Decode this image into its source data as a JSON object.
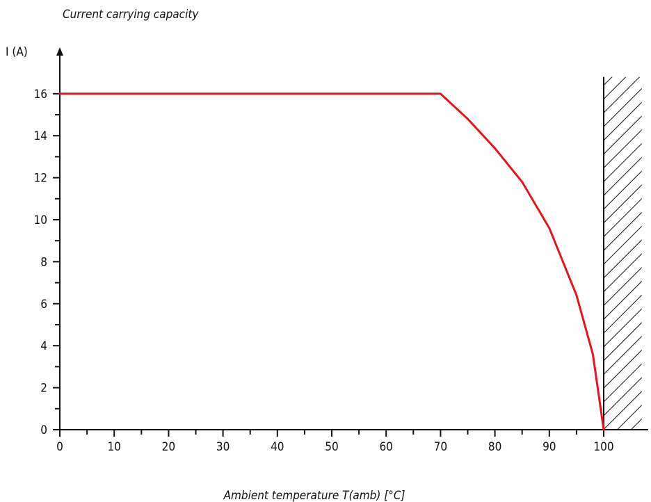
{
  "chart_data": {
    "type": "line",
    "title": "Current carrying capacity",
    "xlabel": "Ambient temperature T(amb) [°C]",
    "ylabel": "I (A)",
    "xlim": [
      0,
      107
    ],
    "ylim": [
      0,
      17
    ],
    "x_ticks": [
      0,
      10,
      20,
      30,
      40,
      50,
      60,
      70,
      80,
      90,
      100
    ],
    "y_ticks": [
      0,
      2,
      4,
      6,
      8,
      10,
      12,
      14,
      16
    ],
    "grid": false,
    "series": [
      {
        "color": "#e8141c",
        "x": [
          0,
          70,
          75,
          80,
          85,
          90,
          95,
          98,
          100
        ],
        "y": [
          16,
          16,
          14.8,
          13.4,
          11.8,
          9.6,
          6.4,
          3.6,
          0
        ]
      }
    ],
    "hatched_region": {
      "x_from": 100,
      "x_to": 107
    }
  }
}
